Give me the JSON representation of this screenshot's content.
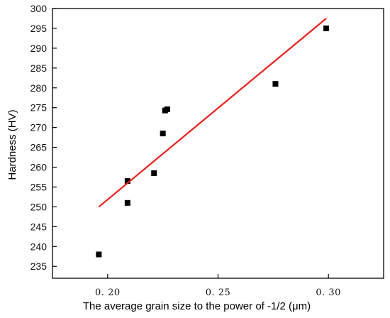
{
  "chart_data": {
    "type": "scatter",
    "xlabel": "The average grain size to the power of -1/2  (μm)",
    "ylabel": "Hardness (HV)",
    "xlim": [
      0.175,
      0.325
    ],
    "ylim": [
      232,
      300
    ],
    "xticks": [
      0.2,
      0.25,
      0.3
    ],
    "xtick_labels": [
      "0. 20",
      "0. 25",
      "0. 30"
    ],
    "yticks": [
      235,
      240,
      245,
      250,
      255,
      260,
      265,
      270,
      275,
      280,
      285,
      290,
      295,
      300
    ],
    "ytick_labels": [
      "235",
      "240",
      "245",
      "250",
      "255",
      "260",
      "265",
      "270",
      "275",
      "280",
      "285",
      "290",
      "295",
      "300"
    ],
    "grid": false,
    "legend": "none",
    "points": [
      {
        "x": 0.196,
        "y": 238.0
      },
      {
        "x": 0.209,
        "y": 256.5
      },
      {
        "x": 0.209,
        "y": 251.0
      },
      {
        "x": 0.221,
        "y": 258.5
      },
      {
        "x": 0.225,
        "y": 268.5
      },
      {
        "x": 0.226,
        "y": 274.3
      },
      {
        "x": 0.227,
        "y": 274.6
      },
      {
        "x": 0.276,
        "y": 281.0
      },
      {
        "x": 0.299,
        "y": 295.0
      }
    ],
    "fit_line": {
      "x": [
        0.196,
        0.299
      ],
      "y": [
        250.0,
        297.5
      ]
    },
    "colors": {
      "points": "#000000",
      "fit_line": "#e8201c",
      "axes": "#000000"
    }
  }
}
